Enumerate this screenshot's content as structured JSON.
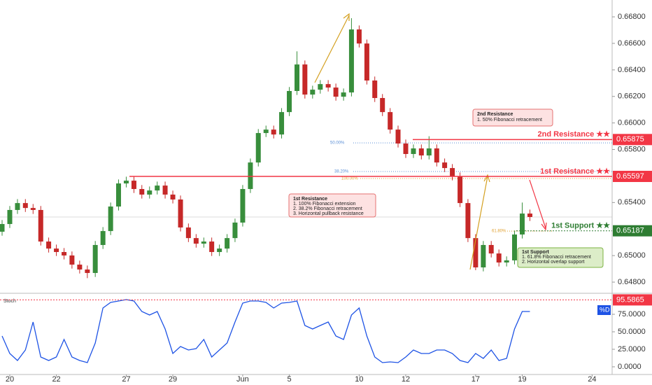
{
  "chart_data": [
    {
      "type": "candlestick",
      "x": [
        -0.33,
        0,
        0.33,
        0.67,
        1,
        1.33,
        1.67,
        2,
        2.33,
        2.67,
        3,
        3.33,
        3.67,
        4,
        4.33,
        4.67,
        5,
        5.33,
        5.67,
        6,
        6.33,
        6.67,
        7,
        7.33,
        7.67,
        8,
        8.33,
        8.67,
        9,
        9.33,
        9.67,
        10,
        10.33,
        10.67,
        11,
        11.33,
        11.67,
        12,
        12.33,
        12.67,
        13,
        13.33,
        13.67,
        14,
        14.33,
        14.67,
        15,
        15.33,
        15.67,
        16,
        16.33,
        16.67,
        17,
        17.33,
        17.67,
        18,
        18.33,
        18.67,
        19,
        19.33,
        19.67,
        20,
        20.33,
        20.67,
        21,
        21.33,
        21.67,
        22,
        22.33
      ],
      "open": [
        0.6518,
        0.65238,
        0.65344,
        0.65396,
        0.65359,
        0.65344,
        0.65106,
        0.65053,
        0.65027,
        0.65001,
        0.64932,
        0.64895,
        0.64869,
        0.6508,
        0.65185,
        0.6537,
        0.65544,
        0.65565,
        0.65502,
        0.6546,
        0.65491,
        0.65528,
        0.6546,
        0.65423,
        0.65212,
        0.65132,
        0.6509,
        0.65106,
        0.65027,
        0.65053,
        0.65132,
        0.65249,
        0.65502,
        0.65702,
        0.65924,
        0.6595,
        0.65913,
        0.66082,
        0.66241,
        0.66441,
        0.66214,
        0.66251,
        0.66293,
        0.66267,
        0.66198,
        0.6623,
        0.66705,
        0.66599,
        0.6632,
        0.66188,
        0.66082,
        0.6595,
        0.65845,
        0.65766,
        0.65808,
        0.65755,
        0.65808,
        0.65702,
        0.6566,
        0.65597,
        0.65396,
        0.65132,
        0.64911,
        0.6508,
        0.65016,
        0.64948,
        0.64964,
        0.65159,
        0.65317
      ],
      "high": [
        0.65268,
        0.65374,
        0.65426,
        0.65426,
        0.65389,
        0.65374,
        0.65136,
        0.65083,
        0.65057,
        0.65031,
        0.64962,
        0.64925,
        0.6511,
        0.65215,
        0.654,
        0.65574,
        0.65595,
        0.65595,
        0.65532,
        0.65521,
        0.65558,
        0.65558,
        0.6549,
        0.65453,
        0.65242,
        0.65162,
        0.65136,
        0.65136,
        0.65083,
        0.65162,
        0.65279,
        0.65532,
        0.65732,
        0.65954,
        0.6598,
        0.6598,
        0.66112,
        0.66271,
        0.6654,
        0.66471,
        0.66281,
        0.66323,
        0.66323,
        0.66297,
        0.6626,
        0.6679,
        0.66735,
        0.66629,
        0.6635,
        0.66218,
        0.66112,
        0.6598,
        0.65875,
        0.65838,
        0.65838,
        0.659,
        0.65838,
        0.65732,
        0.6569,
        0.65627,
        0.65426,
        0.65162,
        0.6511,
        0.6511,
        0.65046,
        0.64994,
        0.65189,
        0.654,
        0.65347
      ],
      "low": [
        0.6515,
        0.65208,
        0.65314,
        0.65329,
        0.65314,
        0.65076,
        0.65023,
        0.64997,
        0.64971,
        0.64902,
        0.64865,
        0.6483,
        0.64839,
        0.6505,
        0.65155,
        0.6534,
        0.65514,
        0.65472,
        0.6543,
        0.6543,
        0.65461,
        0.6543,
        0.65393,
        0.65182,
        0.65102,
        0.6506,
        0.6506,
        0.64997,
        0.64997,
        0.65023,
        0.65102,
        0.65219,
        0.65472,
        0.65672,
        0.65894,
        0.65883,
        0.65883,
        0.66052,
        0.66211,
        0.66184,
        0.66184,
        0.66221,
        0.66237,
        0.66168,
        0.66168,
        0.662,
        0.66569,
        0.6629,
        0.66158,
        0.66052,
        0.6592,
        0.65815,
        0.65736,
        0.65736,
        0.65725,
        0.65725,
        0.65672,
        0.6563,
        0.65567,
        0.65366,
        0.65102,
        0.6489,
        0.64881,
        0.64986,
        0.64918,
        0.64918,
        0.64934,
        0.65129,
        0.65261
      ],
      "close": [
        0.65238,
        0.65344,
        0.65396,
        0.65359,
        0.65344,
        0.65106,
        0.65053,
        0.65027,
        0.65001,
        0.64932,
        0.64895,
        0.64869,
        0.6508,
        0.65185,
        0.6537,
        0.65544,
        0.65565,
        0.65502,
        0.6546,
        0.65491,
        0.65528,
        0.6546,
        0.65423,
        0.65212,
        0.65132,
        0.6509,
        0.65106,
        0.65027,
        0.65053,
        0.65132,
        0.65249,
        0.65502,
        0.65702,
        0.65924,
        0.6595,
        0.65913,
        0.66082,
        0.66241,
        0.66441,
        0.66214,
        0.66251,
        0.66293,
        0.66267,
        0.66198,
        0.6623,
        0.66705,
        0.66599,
        0.6632,
        0.66188,
        0.66082,
        0.6595,
        0.65845,
        0.65766,
        0.65808,
        0.65755,
        0.65808,
        0.65702,
        0.6566,
        0.65597,
        0.65396,
        0.65132,
        0.64911,
        0.6508,
        0.65016,
        0.64948,
        0.64964,
        0.65159,
        0.65317,
        0.65291
      ],
      "up_color": "#388e3c",
      "down_color": "#c62828",
      "xlim": [
        -0.42,
        25.86
      ],
      "ylim": [
        0.64721,
        0.66927
      ],
      "xticks": [
        {
          "value": 0,
          "label": "20"
        },
        {
          "value": 2,
          "label": "22"
        },
        {
          "value": 5,
          "label": "27"
        },
        {
          "value": 7,
          "label": "29"
        },
        {
          "value": 10,
          "label": "Jun"
        },
        {
          "value": 12,
          "label": "5"
        },
        {
          "value": 15,
          "label": "10"
        },
        {
          "value": 17,
          "label": "12"
        },
        {
          "value": 20,
          "label": "17"
        },
        {
          "value": 22,
          "label": "19"
        },
        {
          "value": 25,
          "label": "24"
        }
      ],
      "yticks": [
        {
          "value": 0.648,
          "label": "0.64800"
        },
        {
          "value": 0.65,
          "label": "0.65000"
        },
        {
          "value": 0.654,
          "label": "0.65400"
        },
        {
          "value": 0.658,
          "label": "0.65800"
        },
        {
          "value": 0.66,
          "label": "0.66000"
        },
        {
          "value": 0.662,
          "label": "0.66200"
        },
        {
          "value": 0.664,
          "label": "0.66400"
        },
        {
          "value": 0.666,
          "label": "0.66600"
        },
        {
          "value": 0.668,
          "label": "0.66800"
        }
      ],
      "grid": false,
      "levels": [
        {
          "name": "2nd Resistance ★★",
          "value": 0.65875,
          "color": "#f23645"
        },
        {
          "name": "1st Resistance ★★",
          "value": 0.65597,
          "color": "#f23645"
        },
        {
          "name": "1st Support ★★",
          "value": 0.65187,
          "color": "#2e7d32"
        }
      ],
      "fib_levels": [
        {
          "label": "50.00%",
          "value": 0.6585,
          "color": "#5b8fd6"
        },
        {
          "label": "38.20%",
          "value": 0.65634,
          "color": "#5b8fd6"
        },
        {
          "label": "100.00%",
          "value": 0.65581,
          "color": "#e0a030"
        },
        {
          "label": "61.80%",
          "value": 0.65185,
          "color": "#e0a030"
        }
      ],
      "annotations": [
        {
          "lines": [
            "2nd Resistance",
            "1. 50% Fibonacci retracement"
          ]
        },
        {
          "lines": [
            "1st Resistance",
            "1. 100% Fibonacci extension",
            "2. 38.2% Fibonacci retracement",
            "3. Horizontal pullback resistance"
          ]
        },
        {
          "lines": [
            "1st Support",
            "1. 61.8% Fibonacci retracement",
            "2. Horizontal overlap support"
          ]
        }
      ]
    },
    {
      "type": "line",
      "title": "Stoch",
      "series": [
        {
          "name": "%D",
          "color": "#1e53e5",
          "values": [
            44,
            19,
            9,
            24,
            64,
            14,
            9,
            14,
            39,
            14,
            9,
            6,
            34,
            84,
            92,
            94,
            96,
            94,
            79,
            74,
            79,
            54,
            19,
            29,
            24,
            26,
            39,
            14,
            24,
            34,
            64,
            91,
            94,
            94,
            92,
            84,
            91,
            92,
            94,
            59,
            54,
            59,
            64,
            44,
            39,
            74,
            84,
            44,
            14,
            6,
            7,
            6,
            14,
            24,
            19,
            19,
            24,
            24,
            19,
            9,
            6,
            19,
            12,
            24,
            9,
            12,
            54,
            79,
            79
          ]
        }
      ],
      "level": 95.5865,
      "level_color": "#f23645",
      "ylim": [
        -11,
        104
      ],
      "yticks": [
        {
          "value": 0,
          "label": "0.0000"
        },
        {
          "value": 25,
          "label": "25.0000"
        },
        {
          "value": 50,
          "label": "50.0000"
        },
        {
          "value": 75,
          "label": "75.0000"
        }
      ]
    }
  ]
}
